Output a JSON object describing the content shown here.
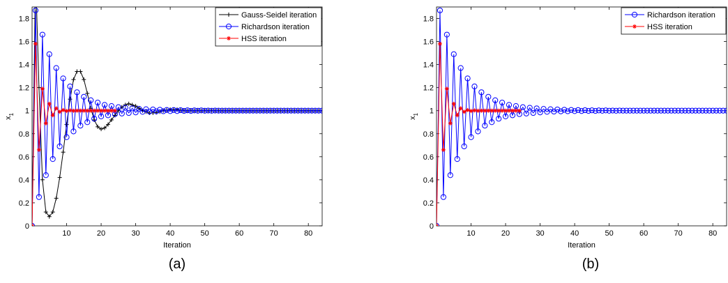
{
  "chart_data": [
    {
      "type": "line",
      "panel_label": "(a)",
      "xlabel": "Iteration",
      "ylabel": "x",
      "ylabel_sub": "1",
      "xlim": [
        0,
        84
      ],
      "ylim": [
        0,
        1.9
      ],
      "xticks": [
        10,
        20,
        30,
        40,
        50,
        60,
        70,
        80
      ],
      "yticks": [
        0,
        0.2,
        0.4,
        0.6,
        0.8,
        1,
        1.2,
        1.4,
        1.6,
        1.8
      ],
      "ytick_labels": [
        "0",
        "0.2",
        "0.4",
        "0.6",
        "0.8",
        "1",
        "1.2",
        "1.4",
        "1.6",
        "1.8"
      ],
      "legend_position": "top-right",
      "series": [
        {
          "name": "Gauss-Seidel iteration",
          "color": "#000000",
          "marker": "plus",
          "x": [
            0,
            1,
            2,
            3,
            4,
            5,
            6,
            7,
            8,
            9,
            10,
            11,
            12,
            13,
            14,
            15,
            16,
            17,
            18,
            19,
            20,
            21,
            22,
            23,
            24,
            25,
            26,
            27,
            28,
            29,
            30,
            31,
            32,
            33,
            34,
            35,
            36,
            37,
            38,
            39,
            40,
            41,
            42,
            43,
            44,
            45,
            46,
            47,
            48,
            49,
            50,
            51,
            52,
            53,
            54,
            55,
            56,
            57,
            58,
            59,
            60,
            61,
            62,
            63,
            64,
            65,
            66,
            67,
            68,
            69,
            70,
            71,
            72,
            73,
            74,
            75,
            76,
            77,
            78,
            79,
            80,
            81,
            82,
            83,
            84
          ],
          "y": [
            0,
            2.2,
            1.2,
            0.4,
            0.12,
            0.08,
            0.12,
            0.24,
            0.42,
            0.64,
            0.88,
            1.1,
            1.27,
            1.34,
            1.34,
            1.27,
            1.15,
            1.02,
            0.92,
            0.86,
            0.84,
            0.85,
            0.88,
            0.92,
            0.96,
            1.0,
            1.03,
            1.05,
            1.06,
            1.05,
            1.04,
            1.02,
            1.0,
            0.99,
            0.98,
            0.98,
            0.985,
            0.99,
            1.0,
            1.005,
            1.01,
            1.01,
            1.01,
            1.005,
            1.0,
            1,
            1,
            1,
            1,
            1,
            1,
            1,
            1,
            1,
            1,
            1,
            1,
            1,
            1,
            1,
            1,
            1,
            1,
            1,
            1,
            1,
            1,
            1,
            1,
            1,
            1,
            1,
            1,
            1,
            1,
            1,
            1,
            1,
            1,
            1,
            1,
            1,
            1,
            1,
            1
          ]
        },
        {
          "name": "Richardson iteration",
          "color": "#0000ff",
          "marker": "circle",
          "x": [
            0,
            1,
            2,
            3,
            4,
            5,
            6,
            7,
            8,
            9,
            10,
            11,
            12,
            13,
            14,
            15,
            16,
            17,
            18,
            19,
            20,
            21,
            22,
            23,
            24,
            25,
            26,
            27,
            28,
            29,
            30,
            31,
            32,
            33,
            34,
            35,
            36,
            37,
            38,
            39,
            40,
            41,
            42,
            43,
            44,
            45,
            46,
            47,
            48,
            49,
            50,
            51,
            52,
            53,
            54,
            55,
            56,
            57,
            58,
            59,
            60,
            61,
            62,
            63,
            64,
            65,
            66,
            67,
            68,
            69,
            70,
            71,
            72,
            73,
            74,
            75,
            76,
            77,
            78,
            79,
            80,
            81,
            82,
            83,
            84
          ],
          "y": [
            0,
            1.87,
            0.25,
            1.66,
            0.44,
            1.49,
            0.58,
            1.37,
            0.69,
            1.28,
            0.77,
            1.21,
            0.82,
            1.16,
            0.87,
            1.12,
            0.9,
            1.09,
            0.93,
            1.07,
            0.95,
            1.05,
            0.96,
            1.04,
            0.97,
            1.03,
            0.975,
            1.025,
            0.98,
            1.02,
            0.985,
            1.015,
            0.99,
            1.012,
            0.992,
            1.01,
            0.994,
            1.008,
            0.995,
            1.006,
            0.996,
            1.005,
            0.997,
            1.004,
            0.998,
            1.003,
            0.998,
            1.002,
            0.999,
            1.002,
            0.999,
            1.001,
            0.999,
            1.001,
            1,
            1,
            1,
            1,
            1,
            1,
            1,
            1,
            1,
            1,
            1,
            1,
            1,
            1,
            1,
            1,
            1,
            1,
            1,
            1,
            1,
            1,
            1,
            1,
            1,
            1,
            1,
            1,
            1,
            1,
            1
          ]
        },
        {
          "name": "HSS iteration",
          "color": "#ff0000",
          "marker": "star",
          "x": [
            0,
            1,
            2,
            3,
            4,
            5,
            6,
            7,
            8,
            9,
            10,
            11,
            12,
            13,
            14,
            15,
            16,
            17,
            18,
            19,
            20,
            21,
            22,
            23,
            24
          ],
          "y": [
            0,
            1.58,
            0.66,
            1.19,
            0.89,
            1.06,
            0.96,
            1.02,
            0.99,
            1.005,
            0.997,
            1.002,
            0.999,
            1,
            1,
            1,
            1,
            1,
            1,
            1,
            1,
            1,
            1,
            1,
            1
          ]
        }
      ]
    },
    {
      "type": "line",
      "panel_label": "(b)",
      "xlabel": "Iteration",
      "ylabel": "x",
      "ylabel_sub": "1",
      "xlim": [
        0,
        84
      ],
      "ylim": [
        0,
        1.9
      ],
      "xticks": [
        10,
        20,
        30,
        40,
        50,
        60,
        70,
        80
      ],
      "yticks": [
        0,
        0.2,
        0.4,
        0.6,
        0.8,
        1,
        1.2,
        1.4,
        1.6,
        1.8
      ],
      "ytick_labels": [
        "0",
        "0.2",
        "0.4",
        "0.6",
        "0.8",
        "1",
        "1.2",
        "1.4",
        "1.6",
        "1.8"
      ],
      "legend_position": "top-right",
      "series": [
        {
          "name": "Richardson iteration",
          "color": "#0000ff",
          "marker": "circle",
          "x": [
            0,
            1,
            2,
            3,
            4,
            5,
            6,
            7,
            8,
            9,
            10,
            11,
            12,
            13,
            14,
            15,
            16,
            17,
            18,
            19,
            20,
            21,
            22,
            23,
            24,
            25,
            26,
            27,
            28,
            29,
            30,
            31,
            32,
            33,
            34,
            35,
            36,
            37,
            38,
            39,
            40,
            41,
            42,
            43,
            44,
            45,
            46,
            47,
            48,
            49,
            50,
            51,
            52,
            53,
            54,
            55,
            56,
            57,
            58,
            59,
            60,
            61,
            62,
            63,
            64,
            65,
            66,
            67,
            68,
            69,
            70,
            71,
            72,
            73,
            74,
            75,
            76,
            77,
            78,
            79,
            80,
            81,
            82,
            83,
            84
          ],
          "y": [
            0,
            1.87,
            0.25,
            1.66,
            0.44,
            1.49,
            0.58,
            1.37,
            0.69,
            1.28,
            0.77,
            1.21,
            0.82,
            1.16,
            0.87,
            1.12,
            0.9,
            1.09,
            0.93,
            1.07,
            0.95,
            1.05,
            0.96,
            1.04,
            0.97,
            1.03,
            0.975,
            1.025,
            0.98,
            1.02,
            0.985,
            1.015,
            0.99,
            1.012,
            0.992,
            1.01,
            0.994,
            1.008,
            0.995,
            1.006,
            0.996,
            1.005,
            0.997,
            1.004,
            0.998,
            1.003,
            0.998,
            1.002,
            0.999,
            1.002,
            0.999,
            1.001,
            0.999,
            1.001,
            1,
            1,
            1,
            1,
            1,
            1,
            1,
            1,
            1,
            1,
            1,
            1,
            1,
            1,
            1,
            1,
            1,
            1,
            1,
            1,
            1,
            1,
            1,
            1,
            1,
            1,
            1,
            1,
            1,
            1,
            1
          ]
        },
        {
          "name": "HSS iteration",
          "color": "#ff0000",
          "marker": "star",
          "x": [
            0,
            1,
            2,
            3,
            4,
            5,
            6,
            7,
            8,
            9,
            10,
            11,
            12,
            13,
            14,
            15,
            16,
            17,
            18,
            19,
            20,
            21,
            22,
            23,
            24
          ],
          "y": [
            0,
            1.58,
            0.66,
            1.19,
            0.89,
            1.06,
            0.96,
            1.02,
            0.99,
            1.005,
            0.997,
            1.002,
            0.999,
            1,
            1,
            1,
            1,
            1,
            1,
            1,
            1,
            1,
            1,
            1,
            1
          ]
        }
      ]
    }
  ]
}
